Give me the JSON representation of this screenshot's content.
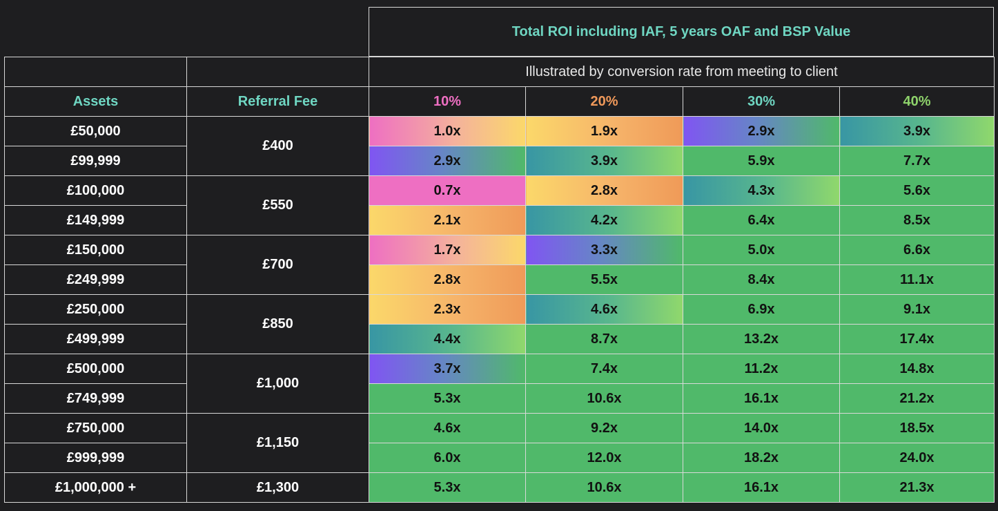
{
  "title": "Total ROI including IAF, 5 years OAF and BSP Value",
  "subtitle": "Illustrated by conversion rate from meeting to client",
  "headers": {
    "assets": "Assets",
    "referral_fee": "Referral Fee",
    "rates": [
      "10%",
      "20%",
      "30%",
      "40%"
    ]
  },
  "rate_colors": [
    "#ee6fc2",
    "#f0995a",
    "#6fd6c2",
    "#8ed36b"
  ],
  "groups": [
    {
      "fee": "£400",
      "rows": [
        {
          "asset": "£50,000",
          "values": [
            "1.0x",
            "1.9x",
            "2.9x",
            "3.9x"
          ],
          "styles": [
            "pinkyellow",
            "yelloworange",
            "purplegreen",
            "tealgreen"
          ]
        },
        {
          "asset": "£99,999",
          "values": [
            "2.9x",
            "3.9x",
            "5.9x",
            "7.7x"
          ],
          "styles": [
            "purplegreen",
            "tealgreen",
            "green",
            "green"
          ]
        }
      ]
    },
    {
      "fee": "£550",
      "rows": [
        {
          "asset": "£100,000",
          "values": [
            "0.7x",
            "2.8x",
            "4.3x",
            "5.6x"
          ],
          "styles": [
            "pink",
            "yelloworange",
            "tealgreen",
            "green"
          ]
        },
        {
          "asset": "£149,999",
          "values": [
            "2.1x",
            "4.2x",
            "6.4x",
            "8.5x"
          ],
          "styles": [
            "yelloworange",
            "tealgreen",
            "green",
            "green"
          ]
        }
      ]
    },
    {
      "fee": "£700",
      "rows": [
        {
          "asset": "£150,000",
          "values": [
            "1.7x",
            "3.3x",
            "5.0x",
            "6.6x"
          ],
          "styles": [
            "pinkyellow",
            "purplegreen",
            "green",
            "green"
          ]
        },
        {
          "asset": "£249,999",
          "values": [
            "2.8x",
            "5.5x",
            "8.4x",
            "11.1x"
          ],
          "styles": [
            "yelloworange",
            "green",
            "green",
            "green"
          ]
        }
      ]
    },
    {
      "fee": "£850",
      "rows": [
        {
          "asset": "£250,000",
          "values": [
            "2.3x",
            "4.6x",
            "6.9x",
            "9.1x"
          ],
          "styles": [
            "yelloworange",
            "tealgreen",
            "green",
            "green"
          ]
        },
        {
          "asset": "£499,999",
          "values": [
            "4.4x",
            "8.7x",
            "13.2x",
            "17.4x"
          ],
          "styles": [
            "tealgreen",
            "green",
            "green",
            "green"
          ]
        }
      ]
    },
    {
      "fee": "£1,000",
      "rows": [
        {
          "asset": "£500,000",
          "values": [
            "3.7x",
            "7.4x",
            "11.2x",
            "14.8x"
          ],
          "styles": [
            "purplegreen",
            "green",
            "green",
            "green"
          ]
        },
        {
          "asset": "£749,999",
          "values": [
            "5.3x",
            "10.6x",
            "16.1x",
            "21.2x"
          ],
          "styles": [
            "green",
            "green",
            "green",
            "green"
          ]
        }
      ]
    },
    {
      "fee": "£1,150",
      "rows": [
        {
          "asset": "£750,000",
          "values": [
            "4.6x",
            "9.2x",
            "14.0x",
            "18.5x"
          ],
          "styles": [
            "green",
            "green",
            "green",
            "green"
          ]
        },
        {
          "asset": "£999,999",
          "values": [
            "6.0x",
            "12.0x",
            "18.2x",
            "24.0x"
          ],
          "styles": [
            "green",
            "green",
            "green",
            "green"
          ]
        }
      ]
    },
    {
      "fee": "£1,300",
      "rows": [
        {
          "asset": "£1,000,000 +",
          "values": [
            "5.3x",
            "10.6x",
            "16.1x",
            "21.3x"
          ],
          "styles": [
            "green",
            "green",
            "green",
            "green"
          ]
        }
      ]
    }
  ]
}
